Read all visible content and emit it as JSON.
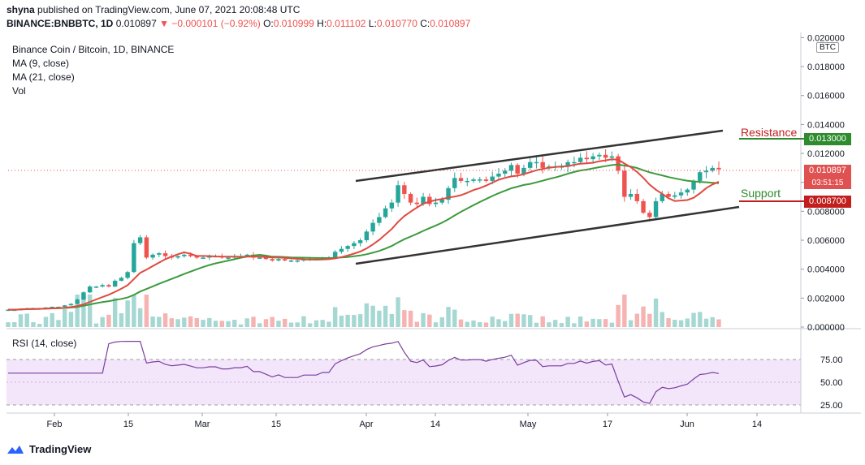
{
  "header": {
    "author": "shyna",
    "published_text": "published on TradingView.com, June 07, 2021 20:08:48 UTC",
    "symbol": "BINANCE:BNBBTC, 1D",
    "last": "0.010897",
    "change": "−0.000101 (−0.92%)",
    "o_label": "O:",
    "o_value": "0.010999",
    "h_label": "H:",
    "h_value": "0.011102",
    "l_label": "L:",
    "l_value": "0.010770",
    "c_label": "C:",
    "c_value": "0.010897"
  },
  "legend": {
    "title": "Binance Coin / Bitcoin, 1D, BINANCE",
    "ma9": "MA (9, close)",
    "ma21": "MA (21, close)",
    "vol": "Vol"
  },
  "rsi_label": "RSI (14, close)",
  "currency_badge": "BTC",
  "annotations": {
    "resistance": "Resistance",
    "support": "Support"
  },
  "price_tags": {
    "resistance": "0.013000",
    "last": "0.010897",
    "countdown": "03:51:15",
    "support": "0.008700"
  },
  "footer": {
    "brand": "TradingView"
  },
  "colors": {
    "up": "#26a69a",
    "down": "#ef5350",
    "ma9": "#e04a3f",
    "ma21": "#3d9a3d",
    "rsi": "#7b3fa0",
    "rsi_band": "#f3e6fb",
    "resistance": "#c21e1e",
    "support": "#2e8b2e"
  },
  "chart_data": [
    {
      "type": "candlestick",
      "title": "Binance Coin / Bitcoin, 1D, BINANCE",
      "y_ticks": [
        "0.020000",
        "0.018000",
        "0.016000",
        "0.014000",
        "0.012000",
        "0.010000",
        "0.008000",
        "0.006000",
        "0.004000",
        "0.002000",
        "0.000000"
      ],
      "x_ticks": [
        "Feb",
        "15",
        "Mar",
        "15",
        "Apr",
        "14",
        "May",
        "17",
        "Jun",
        "14"
      ],
      "ylim": [
        0,
        0.02
      ],
      "close_by_day": [
        0.0012,
        0.0012,
        0.00125,
        0.0013,
        0.0013,
        0.0013,
        0.00135,
        0.0014,
        0.0014,
        0.0015,
        0.0016,
        0.0019,
        0.0024,
        0.0028,
        0.0028,
        0.0029,
        0.0028,
        0.0032,
        0.0034,
        0.0038,
        0.0058,
        0.0062,
        0.0048,
        0.005,
        0.0051,
        0.0049,
        0.0048,
        0.0049,
        0.005,
        0.0049,
        0.0048,
        0.0048,
        0.0049,
        0.0049,
        0.0048,
        0.0048,
        0.0049,
        0.0049,
        0.005,
        0.0048,
        0.0048,
        0.0047,
        0.0046,
        0.0047,
        0.0046,
        0.0046,
        0.0046,
        0.0047,
        0.0047,
        0.0047,
        0.0048,
        0.0048,
        0.0052,
        0.0054,
        0.0056,
        0.0058,
        0.006,
        0.0066,
        0.0072,
        0.0076,
        0.0082,
        0.0086,
        0.0098,
        0.0092,
        0.0086,
        0.0085,
        0.009,
        0.0085,
        0.0086,
        0.0088,
        0.0096,
        0.0103,
        0.0101,
        0.0101,
        0.0102,
        0.0102,
        0.0101,
        0.0104,
        0.0106,
        0.0108,
        0.0112,
        0.0106,
        0.011,
        0.0114,
        0.0114,
        0.011,
        0.0111,
        0.0111,
        0.0111,
        0.0114,
        0.0114,
        0.0117,
        0.0116,
        0.0118,
        0.0119,
        0.0117,
        0.0118,
        0.0108,
        0.009,
        0.0092,
        0.0087,
        0.0079,
        0.0076,
        0.0087,
        0.0092,
        0.009,
        0.0091,
        0.0093,
        0.0095,
        0.0101,
        0.0107,
        0.0108,
        0.011,
        0.0109
      ],
      "series": [
        {
          "name": "MA (9, close)"
        },
        {
          "name": "MA (21, close)"
        },
        {
          "name": "Vol"
        },
        {
          "name": "RSI (14, close)",
          "y_ticks": [
            "75.00",
            "50.00",
            "25.00"
          ]
        }
      ],
      "lines": {
        "resistance_level": 0.013,
        "support_level": 0.0087
      }
    }
  ]
}
